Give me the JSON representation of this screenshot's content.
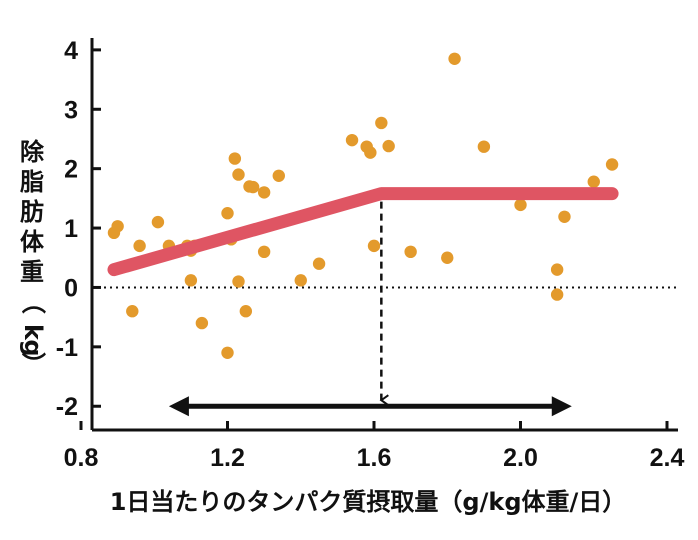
{
  "chart_data": {
    "type": "scatter",
    "xlabel": "1日当たりのタンパク質摂取量（g/kg体重/日）",
    "ylabel": "除脂肪体重（kg）",
    "xlim": [
      0.83,
      2.43
    ],
    "ylim": [
      -2.4,
      4.2
    ],
    "x_ticks": [
      "0.8",
      "1.2",
      "1.6",
      "2.0",
      "2.4"
    ],
    "y_ticks": [
      "4",
      "3",
      "2",
      "1",
      "0",
      "-1",
      "-2"
    ],
    "zero_line": true,
    "colors": {
      "points": "#e39a2c",
      "trend": "#df5563",
      "arrow": "#111111",
      "axis": "#111111"
    },
    "series": [
      {
        "name": "points",
        "x": [
          0.89,
          0.9,
          0.94,
          0.96,
          1.01,
          1.04,
          1.09,
          1.1,
          1.1,
          1.11,
          1.13,
          1.2,
          1.2,
          1.21,
          1.22,
          1.23,
          1.23,
          1.25,
          1.26,
          1.27,
          1.3,
          1.3,
          1.34,
          1.4,
          1.45,
          1.54,
          1.58,
          1.59,
          1.6,
          1.62,
          1.64,
          1.7,
          1.8,
          1.82,
          1.9,
          2.0,
          2.1,
          2.1,
          2.12,
          2.2,
          2.25
        ],
        "y": [
          0.92,
          1.03,
          -0.4,
          0.7,
          1.1,
          0.7,
          0.7,
          0.62,
          0.12,
          0.7,
          -0.6,
          1.25,
          -1.1,
          0.81,
          2.17,
          1.9,
          0.1,
          -0.4,
          1.7,
          1.69,
          1.6,
          0.6,
          1.88,
          0.12,
          0.4,
          2.48,
          2.37,
          2.27,
          0.7,
          2.77,
          2.38,
          0.6,
          0.5,
          3.85,
          2.37,
          1.39,
          0.3,
          -0.12,
          1.19,
          1.78,
          2.07
        ]
      },
      {
        "name": "segmented-trend",
        "x": [
          0.89,
          1.62,
          2.25
        ],
        "y": [
          0.3,
          1.58,
          1.58
        ]
      }
    ],
    "breakpoint": {
      "x": 1.62,
      "y": 1.58
    },
    "range_arrow": {
      "x_start": 1.04,
      "x_end": 2.14,
      "y": -2.0
    }
  }
}
